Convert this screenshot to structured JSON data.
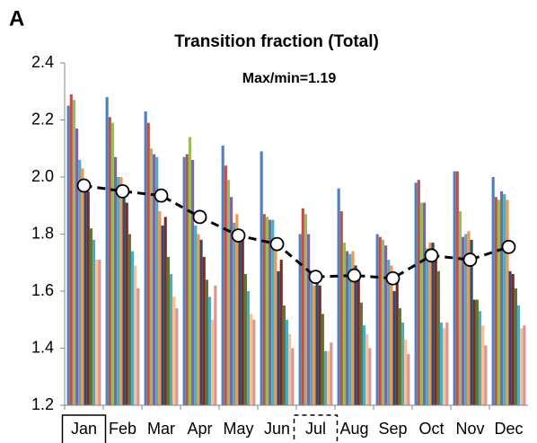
{
  "panel_label": "A",
  "chart_data": {
    "type": "bar",
    "title": "Transition fraction (Total)",
    "annotation": "Max/min=1.19",
    "categories": [
      "Jan",
      "Feb",
      "Mar",
      "Apr",
      "May",
      "Jun",
      "Jul",
      "Aug",
      "Sep",
      "Oct",
      "Nov",
      "Dec"
    ],
    "highlight": [
      {
        "category": 0,
        "style": "solid"
      },
      {
        "category": 6,
        "style": "dashed"
      }
    ],
    "ylim": [
      1.2,
      2.4
    ],
    "yticks": [
      1.2,
      1.4,
      1.6,
      1.8,
      {
        "value": 2,
        "label": "2.0"
      },
      2.2,
      2.4
    ],
    "grid": false,
    "series": [
      {
        "color": "#4f81bd",
        "values": [
          2.25,
          2.28,
          2.23,
          2.07,
          2.11,
          2.09,
          1.8,
          1.96,
          1.8,
          1.98,
          2.02,
          2.0
        ]
      },
      {
        "color": "#c0504d",
        "values": [
          2.29,
          2.21,
          2.19,
          2.08,
          2.04,
          1.87,
          1.89,
          1.88,
          1.79,
          1.99,
          2.02,
          1.93
        ]
      },
      {
        "color": "#9bbb59",
        "values": [
          2.27,
          2.19,
          2.1,
          2.14,
          1.99,
          1.86,
          1.87,
          1.77,
          1.78,
          1.91,
          1.88,
          1.92
        ]
      },
      {
        "color": "#8064a2",
        "values": [
          2.17,
          2.07,
          2.08,
          2.06,
          1.93,
          1.85,
          1.8,
          1.74,
          1.76,
          1.91,
          1.79,
          1.95
        ]
      },
      {
        "color": "#4bacc6",
        "values": [
          2.06,
          2.0,
          2.07,
          1.83,
          1.84,
          1.85,
          1.67,
          1.73,
          1.71,
          1.75,
          1.8,
          1.94
        ]
      },
      {
        "color": "#f79646",
        "values": [
          2.03,
          2.0,
          1.88,
          1.8,
          1.87,
          1.75,
          1.62,
          1.74,
          1.69,
          1.77,
          1.81,
          1.92
        ]
      },
      {
        "color": "#2c4d75",
        "values": [
          1.98,
          1.97,
          1.83,
          1.78,
          1.78,
          1.67,
          1.64,
          1.69,
          1.6,
          1.77,
          1.78,
          1.67
        ]
      },
      {
        "color": "#772c2a",
        "values": [
          1.95,
          1.91,
          1.86,
          1.72,
          1.79,
          1.71,
          1.62,
          1.66,
          1.63,
          1.71,
          1.57,
          1.66
        ]
      },
      {
        "color": "#5f7530",
        "values": [
          1.82,
          1.8,
          1.72,
          1.64,
          1.66,
          1.55,
          1.52,
          1.56,
          1.54,
          1.67,
          1.57,
          1.61
        ]
      },
      {
        "color": "#4bacc6",
        "values": [
          1.78,
          1.74,
          1.66,
          1.58,
          1.6,
          1.5,
          1.39,
          1.48,
          1.49,
          1.49,
          1.53,
          1.55
        ]
      },
      {
        "color": "#fac090",
        "values": [
          1.71,
          1.69,
          1.58,
          1.5,
          1.52,
          1.45,
          1.39,
          1.45,
          1.43,
          1.47,
          1.48,
          1.47
        ]
      },
      {
        "color": "#d99694",
        "values": [
          1.71,
          1.61,
          1.54,
          1.62,
          1.5,
          1.4,
          1.42,
          1.4,
          1.38,
          1.49,
          1.41,
          1.48
        ]
      },
      {
        "type": "line",
        "color": "#000000",
        "values": [
          1.97,
          1.95,
          1.935,
          1.86,
          1.795,
          1.765,
          1.65,
          1.655,
          1.645,
          1.725,
          1.71,
          1.755
        ]
      }
    ]
  }
}
